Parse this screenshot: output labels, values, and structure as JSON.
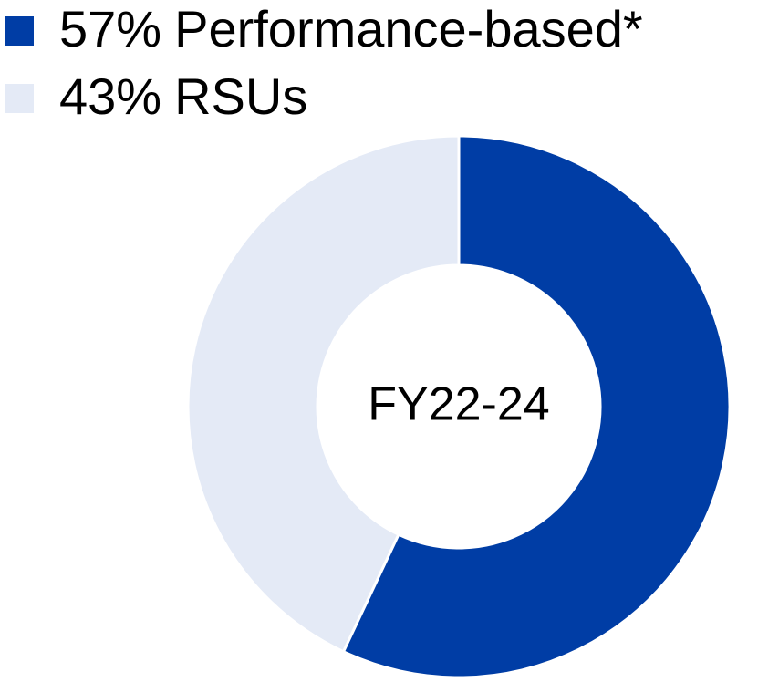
{
  "chart_data": {
    "type": "donut",
    "categories": [
      "Performance-based*",
      "RSUs"
    ],
    "values": [
      57,
      43
    ],
    "value_labels": [
      "57%",
      "43%"
    ],
    "colors": [
      "#003da5",
      "#e4eaf6"
    ],
    "center_label": "FY22-24",
    "legend": "top-left"
  }
}
